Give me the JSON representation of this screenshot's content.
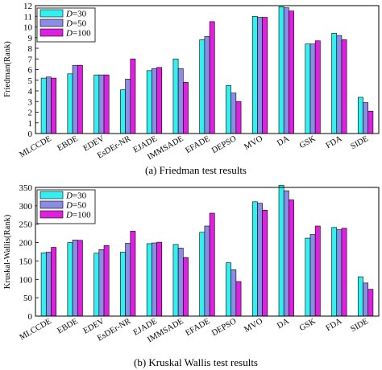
{
  "colors": {
    "D30": "#33f0f0",
    "D50": "#8c8ce6",
    "D100": "#e020e0"
  },
  "chart_data": [
    {
      "type": "bar",
      "caption": "(a) Friedman test results",
      "ylabel": "Friedman(Rank)",
      "xlabel": "",
      "ylim": [
        0,
        12
      ],
      "yticks": [
        0,
        1,
        2,
        3,
        4,
        5,
        6,
        7,
        8,
        9,
        10,
        11,
        12
      ],
      "categories": [
        "MLCCDE",
        "EBDE",
        "EDEV",
        "EsDEr-NR",
        "EJADE",
        "IMMSADE",
        "EFADE",
        "DEPSO",
        "MVO",
        "DA",
        "GSK",
        "FDA",
        "SIDE"
      ],
      "legend": {
        "position": "top-left"
      },
      "series": [
        {
          "name": "D=30",
          "name_italic": "D",
          "name_rest": "=30",
          "color_key": "D30",
          "values": [
            5.2,
            5.6,
            5.5,
            4.1,
            5.9,
            7.0,
            8.8,
            4.5,
            11.0,
            11.9,
            8.4,
            9.4,
            3.4
          ]
        },
        {
          "name": "D=50",
          "name_italic": "D",
          "name_rest": "=50",
          "color_key": "D50",
          "values": [
            5.3,
            6.4,
            5.5,
            5.1,
            6.1,
            6.1,
            9.1,
            3.8,
            10.9,
            11.8,
            8.4,
            9.2,
            2.9
          ]
        },
        {
          "name": "D=100",
          "name_italic": "D",
          "name_rest": "=100",
          "color_key": "D100",
          "values": [
            5.2,
            6.4,
            5.5,
            7.0,
            6.2,
            4.8,
            10.5,
            3.0,
            10.9,
            11.5,
            8.7,
            8.8,
            2.1
          ]
        }
      ]
    },
    {
      "type": "bar",
      "caption": "(b) Kruskal  Wallis test results",
      "ylabel": "Kruskal-Wallis(Rank)",
      "xlabel": "",
      "ylim": [
        0,
        350
      ],
      "yticks": [
        0,
        50,
        100,
        150,
        200,
        250,
        300,
        350
      ],
      "categories": [
        "MLCCDE",
        "EBDE",
        "EDEV",
        "EsDEr-NR",
        "EJADE",
        "IMMSADE",
        "EFADE",
        "DEPSO",
        "MVO",
        "DA",
        "GSK",
        "FDA",
        "SIDE"
      ],
      "legend": {
        "position": "top-left"
      },
      "series": [
        {
          "name": "D=30",
          "name_italic": "D",
          "name_rest": "=30",
          "color_key": "D30",
          "values": [
            172,
            200,
            171,
            174,
            197,
            195,
            228,
            145,
            311,
            356,
            212,
            241,
            107
          ]
        },
        {
          "name": "D=50",
          "name_italic": "D",
          "name_rest": "=50",
          "color_key": "D50",
          "values": [
            174,
            207,
            181,
            198,
            199,
            185,
            245,
            126,
            307,
            341,
            222,
            235,
            90
          ]
        },
        {
          "name": "D=100",
          "name_italic": "D",
          "name_rest": "=100",
          "color_key": "D100",
          "values": [
            187,
            206,
            192,
            231,
            201,
            159,
            280,
            94,
            288,
            316,
            245,
            239,
            73
          ]
        }
      ]
    }
  ]
}
